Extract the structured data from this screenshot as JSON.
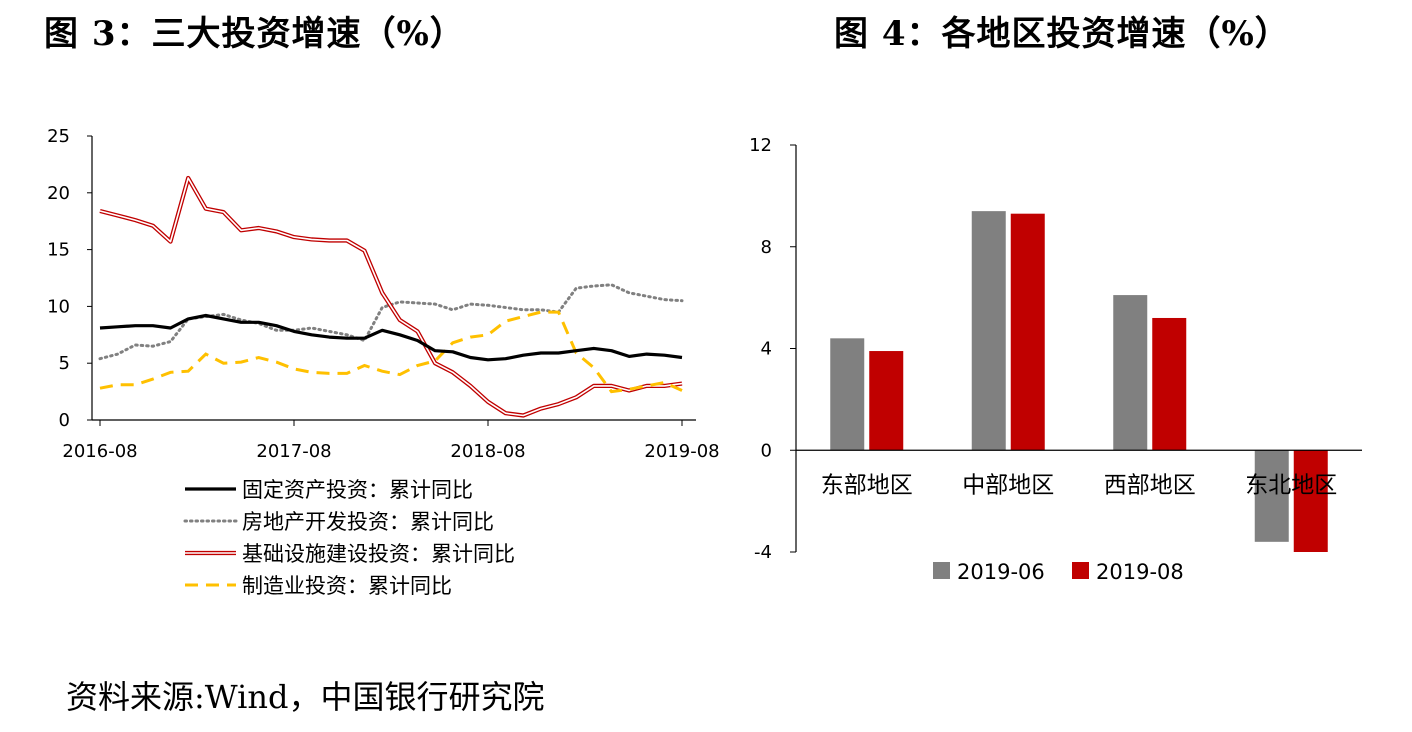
{
  "titles": {
    "left": "图 3：三大投资增速（%）",
    "right": "图 4：各地区投资增速（%）"
  },
  "source": "资料来源:Wind，中国银行研究院",
  "chart_data": [
    {
      "type": "line",
      "title": "图 3：三大投资增速（%）",
      "x": [
        "2016-08",
        "2016-09",
        "2016-10",
        "2016-11",
        "2016-12",
        "2017-02",
        "2017-03",
        "2017-04",
        "2017-05",
        "2017-06",
        "2017-07",
        "2017-08",
        "2017-09",
        "2017-10",
        "2017-11",
        "2017-12",
        "2018-02",
        "2018-03",
        "2018-04",
        "2018-05",
        "2018-06",
        "2018-07",
        "2018-08",
        "2018-09",
        "2018-10",
        "2018-11",
        "2018-12",
        "2019-02",
        "2019-03",
        "2019-04",
        "2019-05",
        "2019-06",
        "2019-07",
        "2019-08"
      ],
      "x_tick_labels": [
        "2016-08",
        "2017-08",
        "2018-08",
        "2019-08"
      ],
      "ylim": [
        0,
        25
      ],
      "y_ticks": [
        0,
        5,
        10,
        15,
        20,
        25
      ],
      "legend_position": "bottom",
      "series": [
        {
          "name": "固定资产投资：累计同比",
          "color": "#000000",
          "style": "solid",
          "values": [
            8.1,
            8.2,
            8.3,
            8.3,
            8.1,
            8.9,
            9.2,
            8.9,
            8.6,
            8.6,
            8.3,
            7.8,
            7.5,
            7.3,
            7.2,
            7.2,
            7.9,
            7.5,
            7.0,
            6.1,
            6.0,
            5.5,
            5.3,
            5.4,
            5.7,
            5.9,
            5.9,
            6.1,
            6.3,
            6.1,
            5.6,
            5.8,
            5.7,
            5.5
          ]
        },
        {
          "name": "房地产开发投资：累计同比",
          "color": "#808080",
          "style": "dotted",
          "values": [
            5.4,
            5.8,
            6.6,
            6.5,
            6.9,
            8.9,
            9.1,
            9.3,
            8.8,
            8.5,
            7.9,
            7.9,
            8.1,
            7.8,
            7.5,
            7.0,
            9.9,
            10.4,
            10.3,
            10.2,
            9.7,
            10.2,
            10.1,
            9.9,
            9.7,
            9.7,
            9.5,
            11.6,
            11.8,
            11.9,
            11.2,
            10.9,
            10.6,
            10.5
          ]
        },
        {
          "name": "基础设施建设投资：累计同比",
          "color": "#C00000",
          "style": "double",
          "values": [
            18.4,
            18.0,
            17.6,
            17.1,
            15.7,
            21.3,
            18.6,
            18.3,
            16.7,
            16.9,
            16.6,
            16.1,
            15.9,
            15.8,
            15.8,
            14.9,
            11.2,
            8.8,
            7.8,
            5.0,
            4.2,
            3.0,
            1.6,
            0.6,
            0.4,
            1.0,
            1.4,
            2.0,
            3.0,
            3.0,
            2.6,
            3.0,
            3.0,
            3.2
          ]
        },
        {
          "name": "制造业投资：累计同比",
          "color": "#FFC000",
          "style": "dashed",
          "values": [
            2.8,
            3.1,
            3.1,
            3.6,
            4.2,
            4.3,
            5.8,
            5.0,
            5.1,
            5.5,
            5.1,
            4.5,
            4.2,
            4.1,
            4.1,
            4.8,
            4.3,
            4.0,
            4.8,
            5.2,
            6.8,
            7.3,
            7.5,
            8.7,
            9.1,
            9.5,
            9.5,
            5.9,
            4.6,
            2.5,
            2.7,
            3.0,
            3.3,
            2.6
          ]
        }
      ]
    },
    {
      "type": "bar",
      "title": "图 4：各地区投资增速（%）",
      "categories": [
        "东部地区",
        "中部地区",
        "西部地区",
        "东北地区"
      ],
      "ylim": [
        -4,
        12
      ],
      "y_ticks": [
        -4,
        0,
        4,
        8,
        12
      ],
      "legend_position": "bottom",
      "series": [
        {
          "name": "2019-06",
          "color": "#808080",
          "values": [
            4.4,
            9.4,
            6.1,
            -3.6
          ]
        },
        {
          "name": "2019-08",
          "color": "#C00000",
          "values": [
            3.9,
            9.3,
            5.2,
            -4.0
          ]
        }
      ]
    }
  ]
}
